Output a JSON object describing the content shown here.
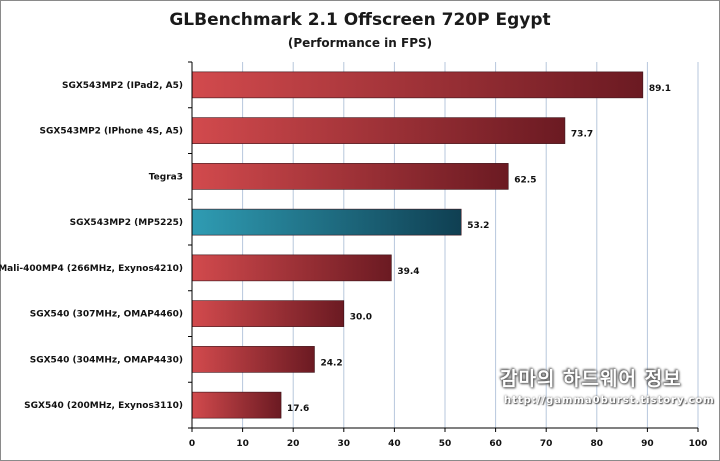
{
  "chart_data": {
    "type": "bar",
    "orientation": "horizontal",
    "title": "GLBenchmark 2.1 Offscreen 720P Egypt",
    "subtitle": "(Performance in FPS)",
    "categories": [
      "SGX543MP2 (IPad2, A5)",
      "SGX543MP2 (IPhone 4S, A5)",
      "Tegra3",
      "SGX543MP2 (MP5225)",
      "Mali-400MP4 (266MHz, Exynos4210)",
      "SGX540 (307MHz, OMAP4460)",
      "SGX540 (304MHz, OMAP4430)",
      "SGX540 (200MHz, Exynos3110)"
    ],
    "values": [
      89.1,
      73.7,
      62.5,
      53.2,
      39.4,
      30.0,
      24.2,
      17.6
    ],
    "value_labels": [
      "89.1",
      "73.7",
      "62.5",
      "53.2",
      "39.4",
      "30.0",
      "24.2",
      "17.6"
    ],
    "highlight_index": 3,
    "xlim": [
      0,
      100
    ],
    "xticks": [
      0,
      10,
      20,
      30,
      40,
      50,
      60,
      70,
      80,
      90,
      100
    ],
    "grid": true,
    "colors": {
      "bar_start": "#d24a4d",
      "bar_end": "#6b1a22",
      "highlight_start": "#2f9cb3",
      "highlight_end": "#0f3f52",
      "grid": "#b7c7dc"
    }
  },
  "watermark": {
    "text_ko": "감마의 하드웨어 정보",
    "url": "http://gamma0burst.tistory.com"
  }
}
